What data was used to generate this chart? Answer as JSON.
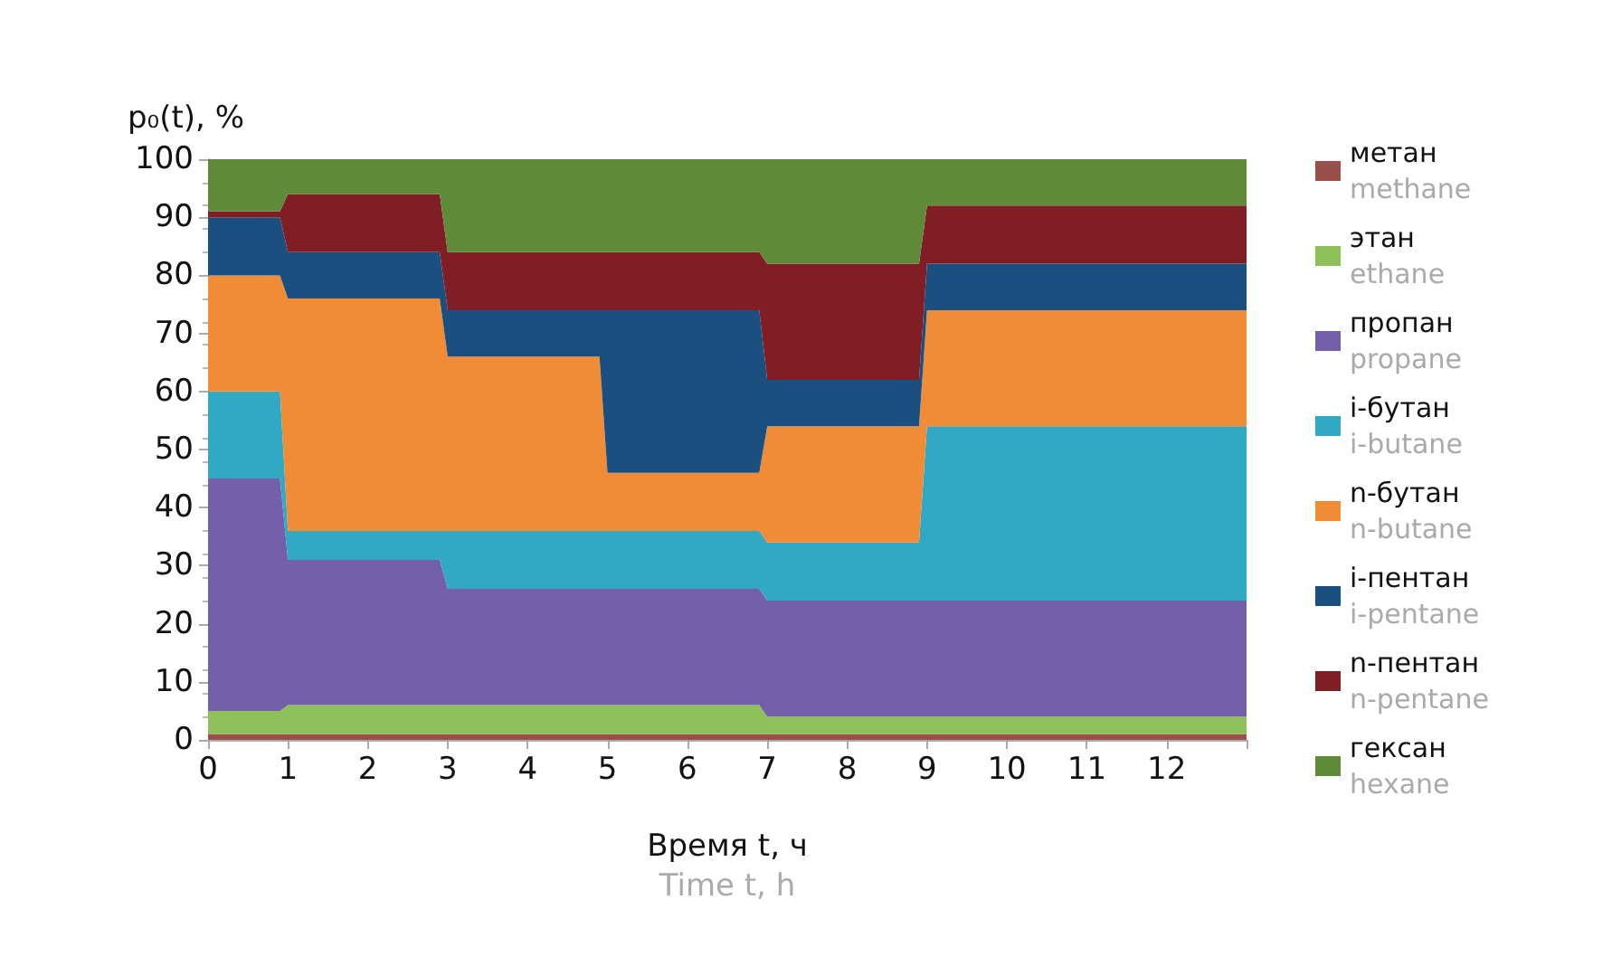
{
  "chart_data": {
    "type": "area",
    "stacked": true,
    "xlabel": "Время t, ч\nTime t, h",
    "ylabel": "p₀(t), %",
    "x": [
      0,
      0.9,
      1,
      2.9,
      3,
      4.9,
      5,
      6.9,
      7,
      8.9,
      9,
      13
    ],
    "xlim": [
      0,
      13
    ],
    "xticks": [
      0,
      1,
      2,
      3,
      4,
      5,
      6,
      7,
      8,
      9,
      10,
      11,
      12,
      {
        "value": 13,
        "label": null
      }
    ],
    "ylim": [
      0,
      100
    ],
    "yticks": [
      0,
      10,
      20,
      30,
      40,
      50,
      60,
      70,
      80,
      90,
      100
    ],
    "grid": false,
    "legend": "right",
    "series": [
      {
        "name": "метан\nmethane",
        "color": "#9b4f4a",
        "values": [
          1,
          1,
          1,
          1,
          1,
          1,
          1,
          1,
          1,
          1,
          1,
          1
        ]
      },
      {
        "name": "этан\nethane",
        "color": "#8fc05a",
        "values": [
          4,
          4,
          5,
          5,
          5,
          5,
          5,
          5,
          3,
          3,
          3,
          3
        ]
      },
      {
        "name": "пропан\npropane",
        "color": "#7460aa",
        "values": [
          40,
          40,
          25,
          25,
          20,
          20,
          20,
          20,
          20,
          20,
          20,
          20
        ]
      },
      {
        "name": "i-бутан\ni-butane",
        "color": "#31a8c4",
        "values": [
          15,
          15,
          5,
          5,
          10,
          10,
          10,
          10,
          10,
          10,
          30,
          30
        ]
      },
      {
        "name": "n-бутан\nn-butane",
        "color": "#f08c35",
        "values": [
          20,
          20,
          40,
          40,
          30,
          30,
          10,
          10,
          20,
          20,
          20,
          20
        ]
      },
      {
        "name": "i-пентан\ni-pentane",
        "color": "#1a4f80",
        "values": [
          10,
          10,
          8,
          8,
          8,
          8,
          28,
          28,
          8,
          8,
          8,
          8
        ]
      },
      {
        "name": "n-пентан\nn-pentane",
        "color": "#7f1e24",
        "values": [
          1,
          1,
          10,
          10,
          10,
          10,
          10,
          10,
          20,
          20,
          10,
          10
        ]
      },
      {
        "name": "гексан\nhexane",
        "color": "#5e8a3a",
        "values": [
          9,
          9,
          6,
          6,
          16,
          16,
          16,
          16,
          18,
          18,
          8,
          8
        ]
      }
    ]
  }
}
